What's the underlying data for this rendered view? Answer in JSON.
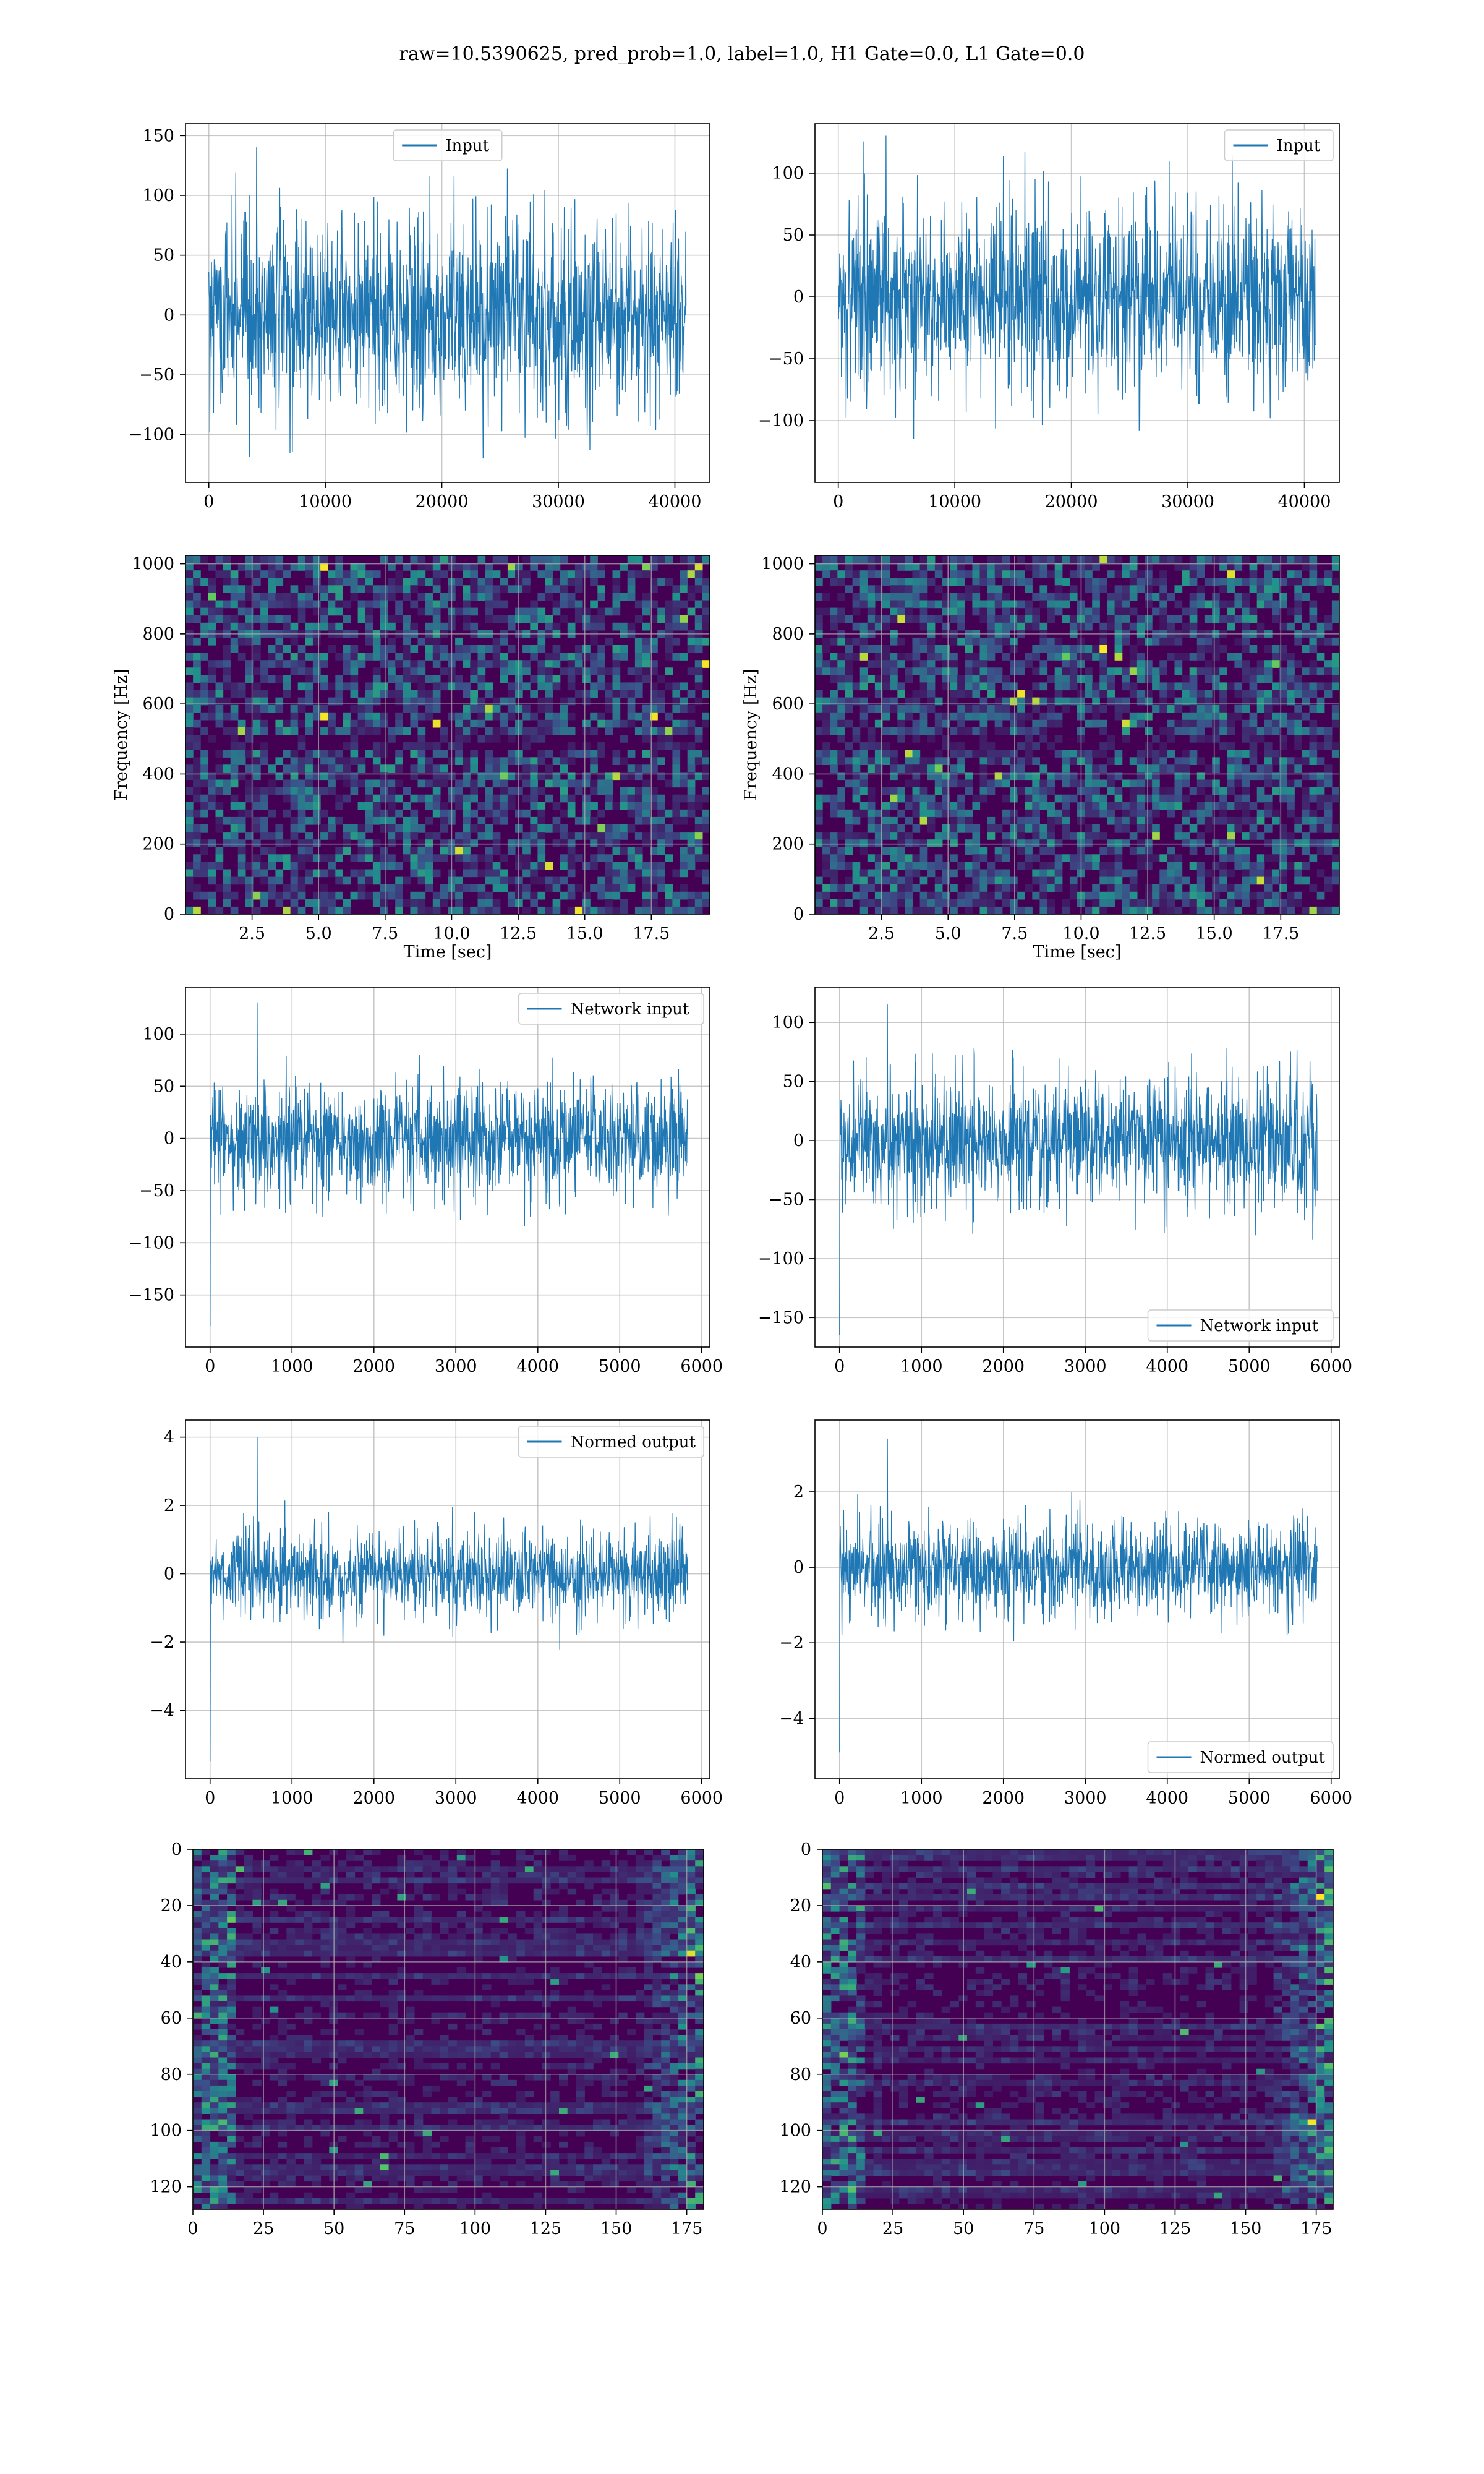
{
  "figure": {
    "suptitle": "raw=10.5390625, pred_prob=1.0, label=1.0, H1 Gate=0.0, L1 Gate=0.0"
  },
  "colors": {
    "line": "#1f77b4",
    "grid": "#b0b0b0",
    "viridis_low": "#440154",
    "viridis_mid": "#21918c",
    "viridis_high": "#fde725"
  },
  "chart_data": [
    {
      "id": "r0c0",
      "type": "line",
      "series": [
        {
          "name": "Input",
          "style": "dense noisy strain",
          "amplitude": 60,
          "spike": 140
        }
      ],
      "x_range": [
        0,
        40960
      ],
      "xlim": [
        -2000,
        43000
      ],
      "ylim": [
        -140,
        160
      ],
      "xticks": [
        0,
        10000,
        20000,
        30000,
        40000
      ],
      "yticks": [
        -100,
        -50,
        0,
        50,
        100,
        150
      ],
      "legend": "upper center",
      "grid": true
    },
    {
      "id": "r0c1",
      "type": "line",
      "series": [
        {
          "name": "Input",
          "style": "dense noisy strain",
          "amplitude": 55,
          "spike": 130
        }
      ],
      "x_range": [
        0,
        40960
      ],
      "xlim": [
        -2000,
        43000
      ],
      "ylim": [
        -150,
        140
      ],
      "xticks": [
        0,
        10000,
        20000,
        30000,
        40000
      ],
      "yticks": [
        -100,
        -50,
        0,
        50,
        100
      ],
      "legend": "upper right",
      "grid": true
    },
    {
      "id": "r1c0",
      "type": "heatmap",
      "colormap": "viridis",
      "content": "spectrogram",
      "xlabel": "Time [sec]",
      "ylabel": "Frequency [Hz]",
      "xlim": [
        0,
        19.7
      ],
      "ylim": [
        0,
        1024
      ],
      "xticks": [
        2.5,
        5.0,
        7.5,
        10.0,
        12.5,
        15.0,
        17.5
      ],
      "xticklabels": [
        "2.5",
        "5.0",
        "7.5",
        "10.0",
        "12.5",
        "15.0",
        "17.5"
      ],
      "yticks": [
        0,
        200,
        400,
        600,
        800,
        1000
      ],
      "grid": true
    },
    {
      "id": "r1c1",
      "type": "heatmap",
      "colormap": "viridis",
      "content": "spectrogram",
      "xlabel": "Time [sec]",
      "ylabel": "Frequency [Hz]",
      "xlim": [
        0,
        19.7
      ],
      "ylim": [
        0,
        1024
      ],
      "xticks": [
        2.5,
        5.0,
        7.5,
        10.0,
        12.5,
        15.0,
        17.5
      ],
      "xticklabels": [
        "2.5",
        "5.0",
        "7.5",
        "10.0",
        "12.5",
        "15.0",
        "17.5"
      ],
      "yticks": [
        0,
        200,
        400,
        600,
        800,
        1000
      ],
      "grid": true
    },
    {
      "id": "r2c0",
      "type": "line",
      "series": [
        {
          "name": "Network input",
          "style": "whitened noise with start spike",
          "amplitude": 40,
          "spike": 130,
          "start_spike": -180
        }
      ],
      "x_range": [
        0,
        5830
      ],
      "xlim": [
        -300,
        6100
      ],
      "ylim": [
        -200,
        145
      ],
      "xticks": [
        0,
        1000,
        2000,
        3000,
        4000,
        5000,
        6000
      ],
      "yticks": [
        -150,
        -100,
        -50,
        0,
        50,
        100
      ],
      "legend": "upper right",
      "grid": true
    },
    {
      "id": "r2c1",
      "type": "line",
      "series": [
        {
          "name": "Network input",
          "style": "whitened noise with start spike",
          "amplitude": 40,
          "spike": 115,
          "start_spike": -165
        }
      ],
      "x_range": [
        0,
        5830
      ],
      "xlim": [
        -300,
        6100
      ],
      "ylim": [
        -175,
        130
      ],
      "xticks": [
        0,
        1000,
        2000,
        3000,
        4000,
        5000,
        6000
      ],
      "yticks": [
        -150,
        -100,
        -50,
        0,
        50,
        100
      ],
      "legend": "lower right",
      "grid": true
    },
    {
      "id": "r3c0",
      "type": "line",
      "series": [
        {
          "name": "Normed output",
          "style": "normalized noise with start spike",
          "amplitude": 0.9,
          "spike": 4.0,
          "start_spike": -5.5
        }
      ],
      "x_range": [
        0,
        5830
      ],
      "xlim": [
        -300,
        6100
      ],
      "ylim": [
        -6.0,
        4.5
      ],
      "xticks": [
        0,
        1000,
        2000,
        3000,
        4000,
        5000,
        6000
      ],
      "yticks": [
        -4,
        -2,
        0,
        2,
        4
      ],
      "legend": "upper right",
      "grid": true
    },
    {
      "id": "r3c1",
      "type": "line",
      "series": [
        {
          "name": "Normed output",
          "style": "normalized noise with start spike",
          "amplitude": 0.9,
          "spike": 3.4,
          "start_spike": -4.9
        }
      ],
      "x_range": [
        0,
        5830
      ],
      "xlim": [
        -300,
        6100
      ],
      "ylim": [
        -5.6,
        3.9
      ],
      "xticks": [
        0,
        1000,
        2000,
        3000,
        4000,
        5000,
        6000
      ],
      "yticks": [
        -4,
        -2,
        0,
        2
      ],
      "legend": "lower right",
      "grid": true
    },
    {
      "id": "r4c0",
      "type": "heatmap",
      "colormap": "viridis",
      "content": "feature map",
      "xlim": [
        0,
        181
      ],
      "ylim": [
        0,
        128
      ],
      "y_inverted": true,
      "xticks": [
        0,
        25,
        50,
        75,
        100,
        125,
        150,
        175
      ],
      "yticks": [
        0,
        20,
        40,
        60,
        80,
        100,
        120
      ],
      "grid": true
    },
    {
      "id": "r4c1",
      "type": "heatmap",
      "colormap": "viridis",
      "content": "feature map",
      "xlim": [
        0,
        181
      ],
      "ylim": [
        0,
        128
      ],
      "y_inverted": true,
      "xticks": [
        0,
        25,
        50,
        75,
        100,
        125,
        150,
        175
      ],
      "yticks": [
        0,
        20,
        40,
        60,
        80,
        100,
        120
      ],
      "grid": true
    }
  ]
}
